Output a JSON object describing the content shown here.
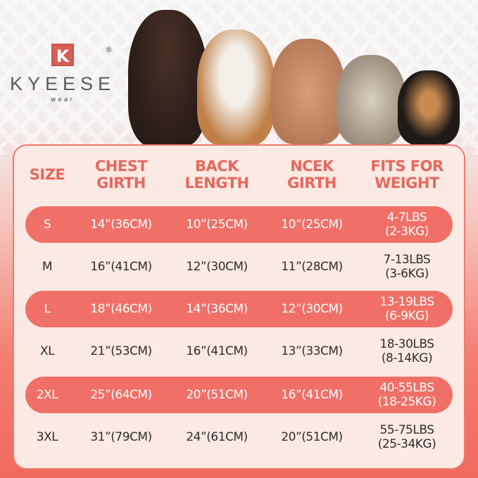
{
  "brand": {
    "logo_letter": "K",
    "name": "KYEESE",
    "sub": "wear",
    "registered": "®"
  },
  "table": {
    "headers": [
      [
        "SIZE"
      ],
      [
        "CHEST",
        "GIRTH"
      ],
      [
        "BACK",
        "LENGTH"
      ],
      [
        "NCEK",
        "GIRTH"
      ],
      [
        "FITS FOR",
        "WEIGHT"
      ]
    ],
    "rows": [
      {
        "size": "S",
        "chest": "14”(36CM)",
        "back": "10”(25CM)",
        "neck": "10”(25CM)",
        "weight_lbs": "4-7LBS",
        "weight_kg": "(2-3KG)",
        "highlight": true
      },
      {
        "size": "M",
        "chest": "16”(41CM)",
        "back": "12”(30CM)",
        "neck": "11”(28CM)",
        "weight_lbs": "7-13LBS",
        "weight_kg": "(3-6KG)",
        "highlight": false
      },
      {
        "size": "L",
        "chest": "18”(46CM)",
        "back": "14”(36CM)",
        "neck": "12”(30CM)",
        "weight_lbs": "13-19LBS",
        "weight_kg": "(6-9KG)",
        "highlight": true
      },
      {
        "size": "XL",
        "chest": "21”(53CM)",
        "back": "16”(41CM)",
        "neck": "13”(33CM)",
        "weight_lbs": "18-30LBS",
        "weight_kg": "(8-14KG)",
        "highlight": false
      },
      {
        "size": "2XL",
        "chest": "25”(64CM)",
        "back": "20”(51CM)",
        "neck": "16”(41CM)",
        "weight_lbs": "40-55LBS",
        "weight_kg": "(18-25KG)",
        "highlight": true
      },
      {
        "size": "3XL",
        "chest": "31”(79CM)",
        "back": "24”(61CM)",
        "neck": "20”(51CM)",
        "weight_lbs": "55-75LBS",
        "weight_kg": "(25-34KG)",
        "highlight": false
      }
    ]
  },
  "colors": {
    "accent": "#f07068",
    "header_text": "#e8675e",
    "card": "#fbe9e3"
  }
}
